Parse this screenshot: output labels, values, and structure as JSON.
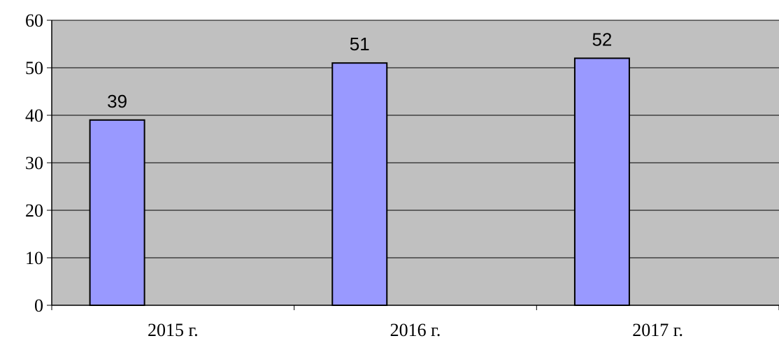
{
  "chart_data": {
    "type": "bar",
    "categories": [
      "2015 г.",
      "2016 г.",
      "2017 г."
    ],
    "values": [
      39,
      51,
      52
    ],
    "data_labels": [
      "39",
      "51",
      "52"
    ],
    "title": "",
    "xlabel": "",
    "ylabel": "",
    "ylim": [
      0,
      60
    ],
    "yticks": [
      0,
      10,
      20,
      30,
      40,
      50,
      60
    ],
    "ytick_labels": [
      "0",
      "10",
      "20",
      "30",
      "40",
      "50",
      "60"
    ],
    "grid": true,
    "legend": "none",
    "colors": {
      "bar_fill": "#9999ff",
      "bar_stroke": "#000000",
      "plot_background": "#c0c0c0",
      "gridline": "#000000"
    }
  }
}
